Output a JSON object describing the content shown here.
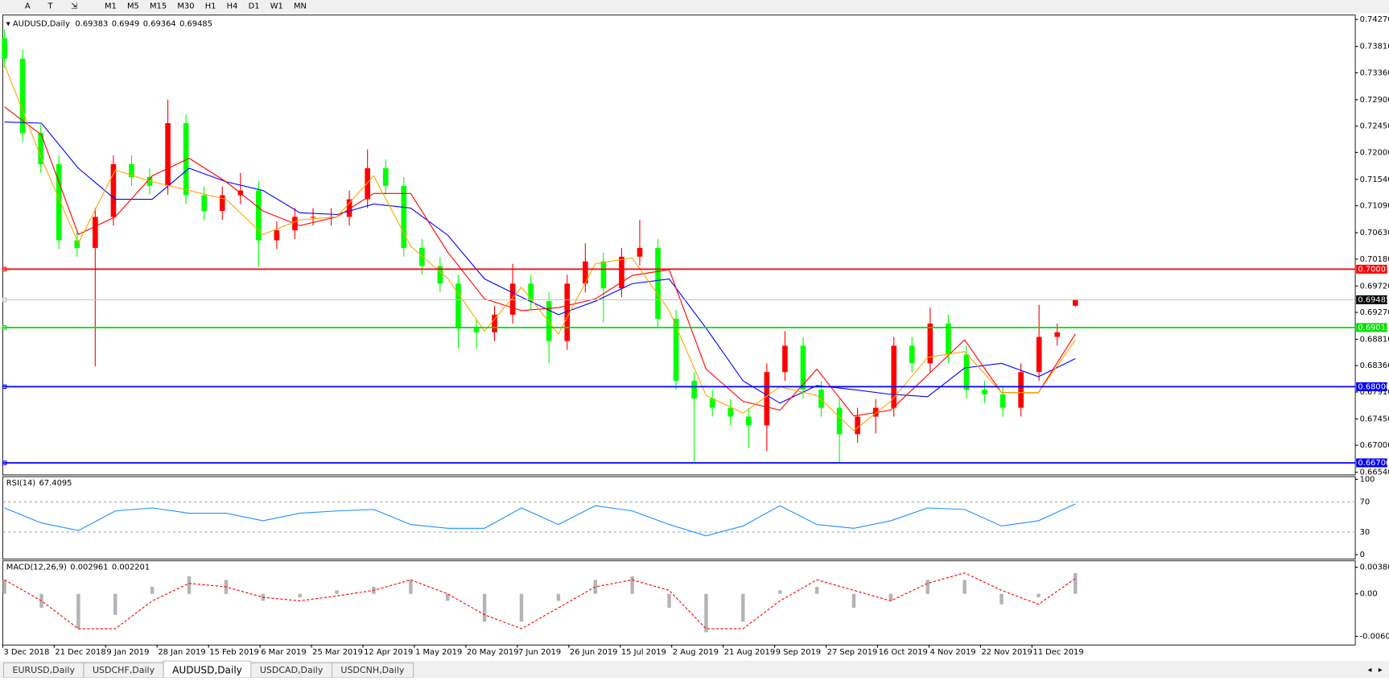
{
  "toolbar": {
    "tools": [
      "A",
      "T"
    ],
    "timeframes": [
      "M1",
      "M5",
      "M15",
      "M30",
      "H1",
      "H4",
      "D1",
      "W1",
      "MN"
    ]
  },
  "tabs": [
    "EURUSD,Daily",
    "USDCHF,Daily",
    "AUDUSD,Daily",
    "USDCAD,Daily",
    "USDCNH,Daily"
  ],
  "active_tab": 2,
  "chart_data": [
    {
      "type": "candlestick",
      "title": "AUDUSD,Daily",
      "up_color": "#ff0000",
      "down_color": "#00ff00",
      "open": [
        0.7395,
        0.736,
        0.7233,
        0.718,
        0.705,
        0.7037,
        0.709,
        0.718,
        0.7158,
        0.7143,
        0.725,
        0.7127,
        0.71,
        0.7127,
        0.7135,
        0.705,
        0.7067,
        0.709,
        0.709,
        0.709,
        0.712,
        0.7173,
        0.7143,
        0.7037,
        0.7006,
        0.6976,
        0.69,
        0.6893,
        0.6923,
        0.6976,
        0.6946,
        0.6878,
        0.6976,
        0.7014,
        0.6968,
        0.7022,
        0.7037,
        0.6916,
        0.681,
        0.678,
        0.6764,
        0.6749,
        0.6734,
        0.6825,
        0.687,
        0.6795,
        0.6764,
        0.6719,
        0.6749,
        0.6764,
        0.687,
        0.684,
        0.6908,
        0.6855,
        0.6795,
        0.6787,
        0.6764,
        0.6825,
        0.6885,
        0.69383
      ],
      "high": [
        0.741,
        0.7375,
        0.7248,
        0.7195,
        0.7065,
        0.7105,
        0.7195,
        0.7195,
        0.7173,
        0.729,
        0.7265,
        0.7142,
        0.7142,
        0.7165,
        0.715,
        0.7082,
        0.7105,
        0.7105,
        0.7105,
        0.7135,
        0.7205,
        0.7188,
        0.7158,
        0.7052,
        0.7021,
        0.6991,
        0.6915,
        0.6938,
        0.701,
        0.6991,
        0.6961,
        0.6991,
        0.7045,
        0.7029,
        0.7037,
        0.7085,
        0.7052,
        0.6931,
        0.6825,
        0.6795,
        0.6779,
        0.6764,
        0.684,
        0.6895,
        0.6885,
        0.681,
        0.6779,
        0.6764,
        0.6779,
        0.6885,
        0.6885,
        0.6935,
        0.6923,
        0.687,
        0.681,
        0.6802,
        0.684,
        0.694,
        0.6908,
        0.6949
      ],
      "low": [
        0.7345,
        0.7218,
        0.7165,
        0.7035,
        0.7022,
        0.6835,
        0.7075,
        0.7143,
        0.7128,
        0.7128,
        0.7112,
        0.7085,
        0.7085,
        0.7112,
        0.7005,
        0.7035,
        0.7052,
        0.7075,
        0.7075,
        0.7075,
        0.7105,
        0.7128,
        0.7022,
        0.6991,
        0.6961,
        0.6865,
        0.6865,
        0.6878,
        0.6908,
        0.6931,
        0.684,
        0.6863,
        0.6961,
        0.691,
        0.6953,
        0.7007,
        0.6901,
        0.6795,
        0.6672,
        0.6749,
        0.6734,
        0.6695,
        0.669,
        0.681,
        0.678,
        0.6749,
        0.667,
        0.6704,
        0.672,
        0.6749,
        0.6825,
        0.6825,
        0.684,
        0.678,
        0.6772,
        0.6749,
        0.6749,
        0.681,
        0.687,
        0.69364
      ],
      "close": [
        0.736,
        0.7233,
        0.718,
        0.705,
        0.7037,
        0.709,
        0.718,
        0.7158,
        0.7143,
        0.725,
        0.7127,
        0.71,
        0.7127,
        0.7135,
        0.705,
        0.7067,
        0.709,
        0.709,
        0.709,
        0.712,
        0.7173,
        0.7143,
        0.7037,
        0.7006,
        0.6976,
        0.69,
        0.6893,
        0.6923,
        0.6976,
        0.6946,
        0.6878,
        0.6976,
        0.7014,
        0.6968,
        0.7022,
        0.7037,
        0.6916,
        0.681,
        0.678,
        0.6764,
        0.6749,
        0.6734,
        0.6825,
        0.687,
        0.6795,
        0.6764,
        0.6719,
        0.6749,
        0.6764,
        0.687,
        0.684,
        0.6908,
        0.6855,
        0.6795,
        0.6787,
        0.6764,
        0.6825,
        0.6885,
        0.6893,
        0.69485
      ],
      "moving_averages": [
        {
          "color": "#0000ff",
          "values": [
            0.7252,
            0.725,
            0.7173,
            0.712,
            0.712,
            0.7173,
            0.715,
            0.7135,
            0.7097,
            0.7094,
            0.7112,
            0.7105,
            0.7059,
            0.6984,
            0.6953,
            0.6923,
            0.6946,
            0.6976,
            0.6984,
            0.69,
            0.681,
            0.6772,
            0.6802,
            0.6795,
            0.6787,
            0.6783,
            0.6832,
            0.684,
            0.6817,
            0.6848
          ]
        },
        {
          "color": "#ff0000",
          "values": [
            0.7278,
            0.723,
            0.706,
            0.709,
            0.716,
            0.719,
            0.715,
            0.71,
            0.7075,
            0.709,
            0.713,
            0.713,
            0.703,
            0.695,
            0.693,
            0.6935,
            0.695,
            0.699,
            0.7,
            0.683,
            0.6775,
            0.676,
            0.683,
            0.675,
            0.676,
            0.682,
            0.688,
            0.679,
            0.679,
            0.689
          ]
        },
        {
          "color": "#ffa500",
          "values": [
            0.735,
            0.719,
            0.7045,
            0.717,
            0.715,
            0.7135,
            0.712,
            0.706,
            0.7085,
            0.709,
            0.716,
            0.704,
            0.6985,
            0.6895,
            0.697,
            0.689,
            0.701,
            0.702,
            0.693,
            0.6785,
            0.6755,
            0.68,
            0.6785,
            0.6725,
            0.6775,
            0.685,
            0.686,
            0.679,
            0.679,
            0.688
          ]
        }
      ],
      "levels": [
        {
          "value": 0.70007,
          "label": "0.70007",
          "color": "#ff0000"
        },
        {
          "value": 0.69011,
          "label": "0.69011",
          "color": "#00e000"
        },
        {
          "value": 0.68,
          "label": "0.68000",
          "color": "#0000ff"
        },
        {
          "value": 0.667,
          "label": "0.66700",
          "color": "#0000ff"
        }
      ],
      "ylim": [
        0.6654,
        0.7427
      ],
      "yticks": [
        {
          "value": 0.7427,
          "label": "0.74270"
        },
        {
          "value": 0.7381,
          "label": "0.73810"
        },
        {
          "value": 0.7336,
          "label": "0.73360"
        },
        {
          "value": 0.729,
          "label": "0.72900"
        },
        {
          "value": 0.7245,
          "label": "0.72450"
        },
        {
          "value": 0.72,
          "label": "0.72000"
        },
        {
          "value": 0.7154,
          "label": "0.71540"
        },
        {
          "value": 0.7109,
          "label": "0.71090"
        },
        {
          "value": 0.7063,
          "label": "0.70630"
        },
        {
          "value": 0.7018,
          "label": "0.70180"
        },
        {
          "value": 0.6972,
          "label": "0.69720"
        },
        {
          "value": 0.6927,
          "label": "0.69270"
        },
        {
          "value": 0.6881,
          "label": "0.68810"
        },
        {
          "value": 0.6836,
          "label": "0.68360"
        },
        {
          "value": 0.6791,
          "label": "0.67910"
        },
        {
          "value": 0.6745,
          "label": "0.67450"
        },
        {
          "value": 0.67,
          "label": "0.67000"
        },
        {
          "value": 0.6654,
          "label": "0.66540"
        }
      ],
      "date_labels": [
        "3 Dec 2018",
        "21 Dec 2018",
        "9 Jan 2019",
        "28 Jan 2019",
        "15 Feb 2019",
        "6 Mar 2019",
        "25 Mar 2019",
        "12 Apr 2019",
        "1 May 2019",
        "20 May 2019",
        "7 Jun 2019",
        "26 Jun 2019",
        "15 Jul 2019",
        "2 Aug 2019",
        "21 Aug 2019",
        "9 Sep 2019",
        "27 Sep 2019",
        "16 Oct 2019",
        "4 Nov 2019",
        "22 Nov 2019",
        "11 Dec 2019"
      ]
    },
    {
      "type": "line",
      "title": "RSI(14)",
      "color": "#1e90ff",
      "values": [
        62,
        42,
        32,
        58,
        62,
        55,
        55,
        45,
        55,
        58,
        60,
        40,
        35,
        35,
        62,
        40,
        65,
        58,
        40,
        25,
        38,
        65,
        40,
        35,
        45,
        62,
        60,
        38,
        45,
        67.4095
      ],
      "ylim": [
        0,
        100
      ],
      "yticks": [
        100,
        70,
        30,
        0
      ]
    },
    {
      "type": "macd",
      "title": "MACD(12,26,9)",
      "hist_color": "#b4b4b4",
      "signal_color": "#ff0000",
      "histogram": [
        0.002,
        -0.002,
        -0.005,
        -0.003,
        0.001,
        0.0025,
        0.002,
        -0.001,
        -0.0005,
        0.0005,
        0.001,
        0.002,
        -0.001,
        -0.004,
        -0.004,
        -0.001,
        0.002,
        0.0025,
        -0.002,
        -0.0055,
        -0.004,
        0.0005,
        0.001,
        -0.002,
        -0.001,
        0.002,
        0.002,
        -0.0015,
        -0.0005,
        0.002961
      ],
      "signal": [
        0.002,
        -0.001,
        -0.005,
        -0.005,
        -0.001,
        0.0015,
        0.001,
        -0.0005,
        -0.001,
        -0.0003,
        0.0005,
        0.002,
        0,
        -0.003,
        -0.005,
        -0.002,
        0.001,
        0.002,
        0.0005,
        -0.005,
        -0.005,
        -0.001,
        0.002,
        0.0005,
        -0.001,
        0.0015,
        0.003,
        0.0005,
        -0.0015,
        0.002201
      ],
      "ylim": [
        -0.0072,
        0.0046
      ],
      "yticks": [
        0.003804,
        {
          "value": 0,
          "label": "0.00"
        },
        -0.006087
      ]
    }
  ]
}
